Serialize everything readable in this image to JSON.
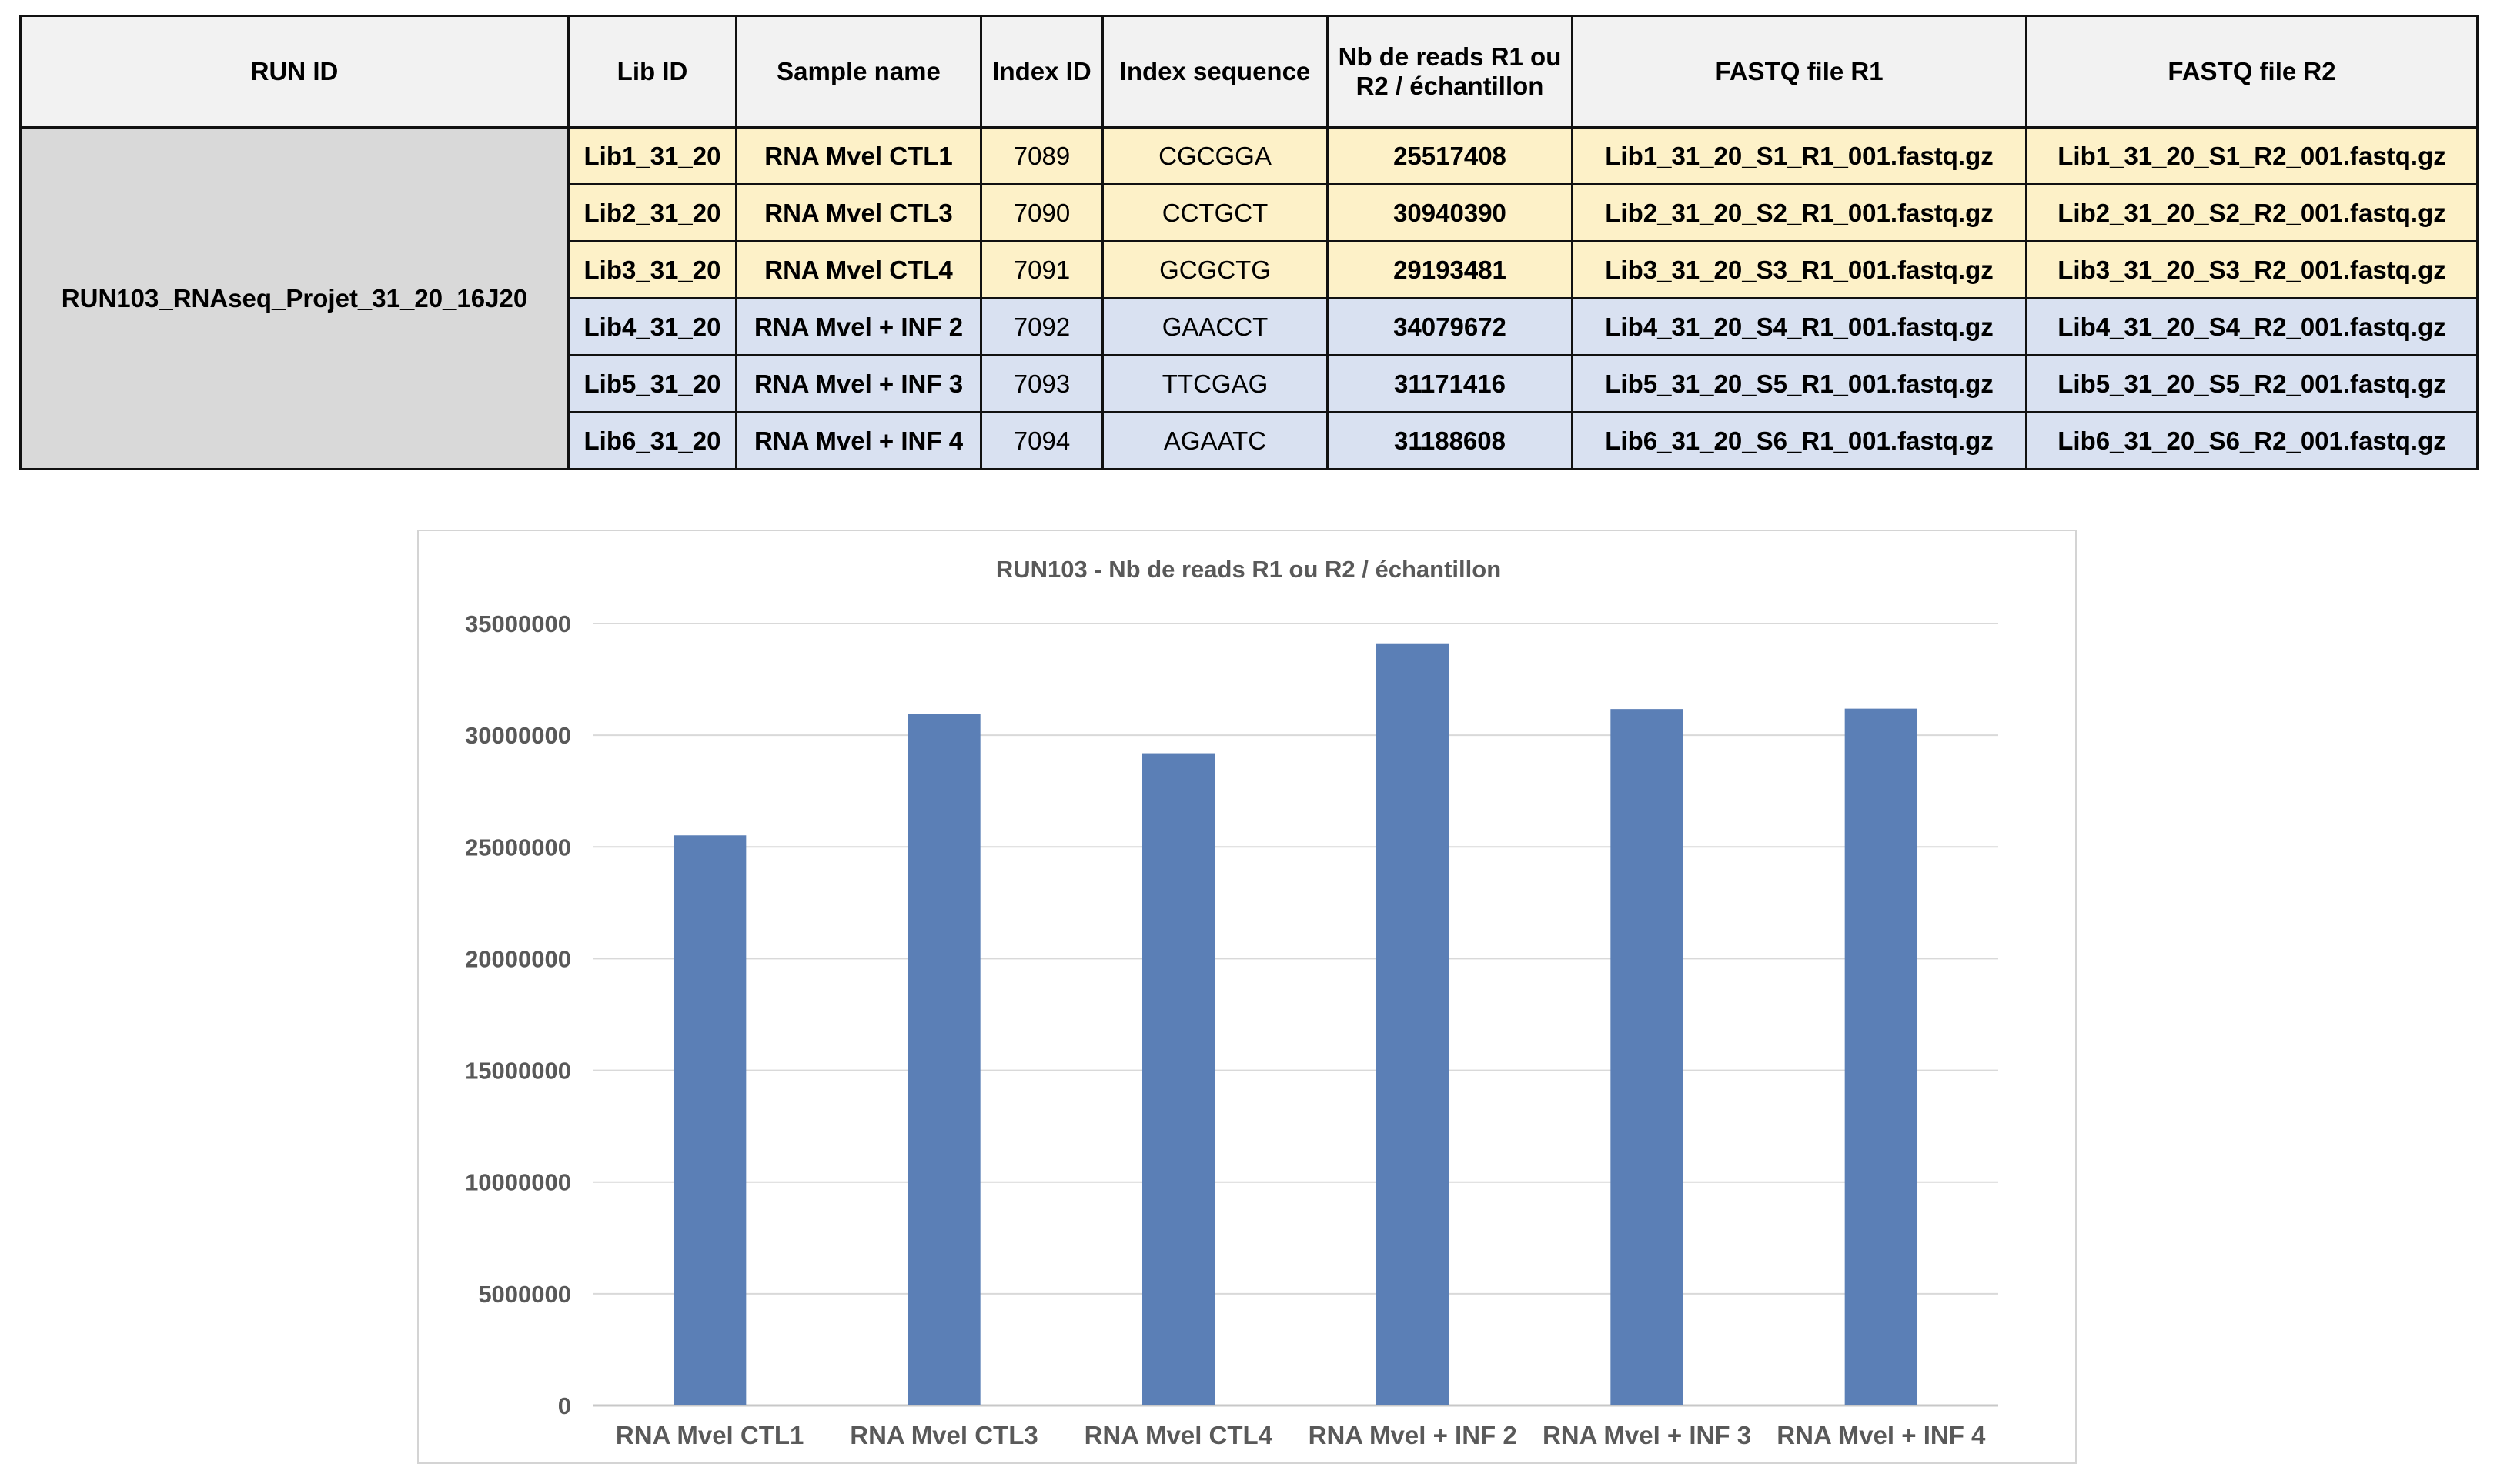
{
  "table": {
    "headers": [
      "RUN ID",
      "Lib ID",
      "Sample name",
      "Index ID",
      "Index sequence",
      "Nb de reads R1 ou R2 / échantillon",
      "FASTQ file R1",
      "FASTQ file R2"
    ],
    "run_id": "RUN103_RNAseq_Projet_31_20_16J20",
    "rows": [
      {
        "lib": "Lib1_31_20",
        "sample": "RNA Mvel CTL1",
        "index_id": "7089",
        "index_seq": "CGCGGA",
        "reads": "25517408",
        "r1": "Lib1_31_20_S1_R1_001.fastq.gz",
        "r2": "Lib1_31_20_S1_R2_001.fastq.gz"
      },
      {
        "lib": "Lib2_31_20",
        "sample": "RNA Mvel CTL3",
        "index_id": "7090",
        "index_seq": "CCTGCT",
        "reads": "30940390",
        "r1": "Lib2_31_20_S2_R1_001.fastq.gz",
        "r2": "Lib2_31_20_S2_R2_001.fastq.gz"
      },
      {
        "lib": "Lib3_31_20",
        "sample": "RNA Mvel CTL4",
        "index_id": "7091",
        "index_seq": "GCGCTG",
        "reads": "29193481",
        "r1": "Lib3_31_20_S3_R1_001.fastq.gz",
        "r2": "Lib3_31_20_S3_R2_001.fastq.gz"
      },
      {
        "lib": "Lib4_31_20",
        "sample": "RNA Mvel + INF 2",
        "index_id": "7092",
        "index_seq": "GAACCT",
        "reads": "34079672",
        "r1": "Lib4_31_20_S4_R1_001.fastq.gz",
        "r2": "Lib4_31_20_S4_R2_001.fastq.gz"
      },
      {
        "lib": "Lib5_31_20",
        "sample": "RNA Mvel + INF 3",
        "index_id": "7093",
        "index_seq": "TTCGAG",
        "reads": "31171416",
        "r1": "Lib5_31_20_S5_R1_001.fastq.gz",
        "r2": "Lib5_31_20_S5_R2_001.fastq.gz"
      },
      {
        "lib": "Lib6_31_20",
        "sample": "RNA Mvel + INF 4",
        "index_id": "7094",
        "index_seq": "AGAATC",
        "reads": "31188608",
        "r1": "Lib6_31_20_S6_R1_001.fastq.gz",
        "r2": "Lib6_31_20_S6_R2_001.fastq.gz"
      }
    ],
    "colors": {
      "ctl_rows": "#fdf1c8",
      "inf_rows": "#d9e1f1",
      "run_id_cell": "#d9d9d9",
      "header": "#f2f2f2"
    }
  },
  "chart_data": {
    "type": "bar",
    "title": "RUN103 - Nb de reads R1 ou R2 / échantillon",
    "categories": [
      "RNA Mvel CTL1",
      "RNA Mvel CTL3",
      "RNA Mvel CTL4",
      "RNA Mvel + INF 2",
      "RNA Mvel + INF 3",
      "RNA Mvel + INF 4"
    ],
    "values": [
      25517408,
      30940390,
      29193481,
      34079672,
      31171416,
      31188608
    ],
    "ylim": [
      0,
      35000000
    ],
    "yticks": [
      "0",
      "5000000",
      "10000000",
      "15000000",
      "20000000",
      "25000000",
      "30000000",
      "35000000"
    ],
    "xlabel": "",
    "ylabel": "",
    "grid": true,
    "legend": "none",
    "bar_color": "#5b7fb6"
  }
}
